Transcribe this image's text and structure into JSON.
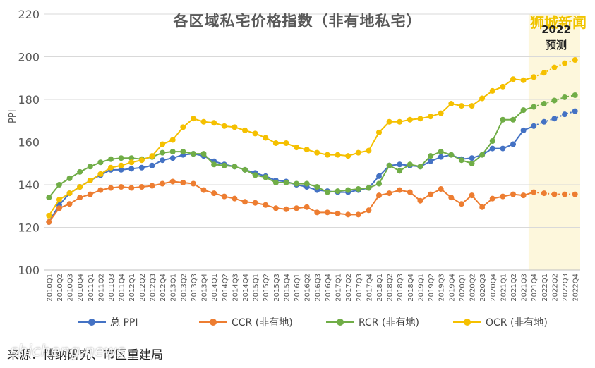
{
  "chart_data": {
    "type": "line",
    "title": "各区域私宅价格指数（非有地私宅）",
    "ylabel": "PPI",
    "ylim": [
      100,
      220
    ],
    "yticks": [
      100,
      120,
      140,
      160,
      180,
      200,
      220
    ],
    "forecast_label_line1": "2022",
    "forecast_label_line2": "预测",
    "forecast_start_index": 47,
    "categories": [
      "2010Q1",
      "2010Q2",
      "2010Q3",
      "2010Q4",
      "2011Q1",
      "2011Q2",
      "2011Q3",
      "2011Q4",
      "2012Q1",
      "2012Q2",
      "2012Q3",
      "2012Q4",
      "2013Q1",
      "2013Q2",
      "2013Q3",
      "2013Q4",
      "2014Q1",
      "2014Q2",
      "2014Q3",
      "2014Q4",
      "2015Q1",
      "2015Q2",
      "2015Q3",
      "2015Q4",
      "2016Q1",
      "2016Q2",
      "2016Q3",
      "2016Q4",
      "2017Q1",
      "2017Q2",
      "2017Q3",
      "2017Q4",
      "2018Q1",
      "2018Q2",
      "2018Q3",
      "2018Q4",
      "2019Q1",
      "2019Q2",
      "2019Q3",
      "2019Q4",
      "2020Q1",
      "2020Q2",
      "2020Q3",
      "2020Q4",
      "2021Q1",
      "2021Q2",
      "2021Q3",
      "2021Q4",
      "2022Q1",
      "2022Q2",
      "2022Q3",
      "2022Q4"
    ],
    "series": [
      {
        "name": "总 PPI",
        "color": "#4472c4",
        "values": [
          122.5,
          130.5,
          136,
          139,
          142,
          144.5,
          147,
          147,
          147.5,
          148,
          149,
          151.5,
          152.5,
          154,
          154.5,
          153.5,
          151,
          149.5,
          148.5,
          147,
          145.5,
          144,
          142,
          141.5,
          140,
          139,
          137.5,
          137,
          136.5,
          136.5,
          137.5,
          138.5,
          144,
          149,
          149.5,
          149,
          148.5,
          151,
          153,
          154,
          152,
          152.5,
          154,
          157,
          157,
          159,
          165.5,
          167.5,
          169.5,
          171,
          173,
          174.5
        ]
      },
      {
        "name": "CCR (非有地)",
        "color": "#ed7d31",
        "values": [
          122.5,
          129,
          131,
          134,
          135.5,
          137.5,
          138.5,
          139,
          138.5,
          139,
          139.5,
          140.5,
          141.5,
          141,
          140.5,
          137.5,
          136,
          134.5,
          133.5,
          132,
          131.5,
          130.5,
          129,
          128.5,
          129,
          129.5,
          127,
          127,
          126.5,
          126,
          126,
          128,
          135,
          136,
          137.5,
          136.5,
          132.5,
          135.5,
          138,
          134,
          131,
          135,
          129.5,
          133.5,
          134.5,
          135.5,
          135,
          136.5,
          136,
          135.5,
          135.5,
          135.5
        ]
      },
      {
        "name": "RCR (非有地)",
        "color": "#70ad47",
        "values": [
          134,
          140,
          143,
          146,
          148.5,
          150.5,
          152,
          152.5,
          152.5,
          152,
          153,
          155,
          155.5,
          155.5,
          154.5,
          154.5,
          149.5,
          149,
          148.5,
          147,
          144.5,
          143.5,
          141,
          141,
          140.5,
          140.5,
          139,
          136.5,
          137,
          137.5,
          138,
          138.5,
          140.5,
          149,
          146.5,
          149.5,
          148.5,
          153.5,
          155.5,
          154,
          151.5,
          150,
          154,
          160.5,
          170.5,
          170.5,
          175,
          176.5,
          178,
          179.5,
          181,
          182
        ]
      },
      {
        "name": "OCR (非有地)",
        "color": "#f5c000",
        "values": [
          125.5,
          133,
          136,
          139,
          142,
          145,
          148,
          149,
          150.5,
          151.5,
          153.5,
          159,
          161,
          167,
          171,
          169.5,
          169,
          167.5,
          167,
          165.5,
          164,
          162,
          159.5,
          159.5,
          157.5,
          156.5,
          155,
          154,
          154,
          153.5,
          155,
          156,
          164.5,
          169.5,
          169.5,
          170.5,
          171,
          172,
          173.5,
          178,
          177,
          177,
          180.5,
          184,
          186,
          189.5,
          189,
          190.5,
          192.5,
          195,
          197,
          198.5
        ]
      }
    ]
  },
  "legend": {
    "items": [
      {
        "label": "总 PPI",
        "color": "#4472c4"
      },
      {
        "label": "CCR (非有地)",
        "color": "#ed7d31"
      },
      {
        "label": "RCR (非有地)",
        "color": "#70ad47"
      },
      {
        "label": "OCR (非有地)",
        "color": "#f5c000"
      }
    ]
  },
  "source_text": "来源：博纳研究、市区重建局",
  "watermark_top": "狮城新闻",
  "watermark_bottom": "shicheng.news",
  "colors": {
    "forecast_band": "#fdf7dc",
    "grid": "#d9d9d9",
    "axis_text": "#595959"
  }
}
